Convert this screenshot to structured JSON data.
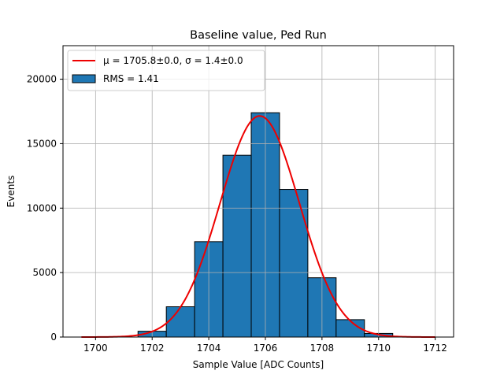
{
  "chart_data": {
    "type": "bar",
    "title": "Baseline value, Ped Run",
    "xlabel": "Sample Value [ADC Counts]",
    "ylabel": "Events",
    "xlim": [
      1698.85,
      1712.65
    ],
    "ylim": [
      0,
      22600
    ],
    "grid": true,
    "legend_position": "top-left",
    "x_ticks": [
      1700,
      1702,
      1704,
      1706,
      1708,
      1710,
      1712
    ],
    "y_ticks": [
      0,
      5000,
      10000,
      15000,
      20000
    ],
    "bins": [
      {
        "left": 1701.5,
        "right": 1702.5,
        "value": 450
      },
      {
        "left": 1702.5,
        "right": 1703.5,
        "value": 2350
      },
      {
        "left": 1703.5,
        "right": 1704.5,
        "value": 7400
      },
      {
        "left": 1704.5,
        "right": 1705.5,
        "value": 14100
      },
      {
        "left": 1705.5,
        "right": 1706.5,
        "value": 17400
      },
      {
        "left": 1706.5,
        "right": 1707.5,
        "value": 11450
      },
      {
        "left": 1707.5,
        "right": 1708.5,
        "value": 4600
      },
      {
        "left": 1708.5,
        "right": 1709.5,
        "value": 1350
      },
      {
        "left": 1709.5,
        "right": 1710.5,
        "value": 280
      }
    ],
    "fit": {
      "mu": 1705.8,
      "sigma": 1.4,
      "amplitude": 17150,
      "x_range": [
        1699.5,
        1712
      ]
    },
    "series": [
      {
        "name": "μ = 1705.8±0.0, σ = 1.4±0.0",
        "kind": "gaussian-fit",
        "color": "#ee0000"
      },
      {
        "name": "RMS = 1.41",
        "kind": "histogram",
        "color": "#1f77b4"
      }
    ]
  }
}
